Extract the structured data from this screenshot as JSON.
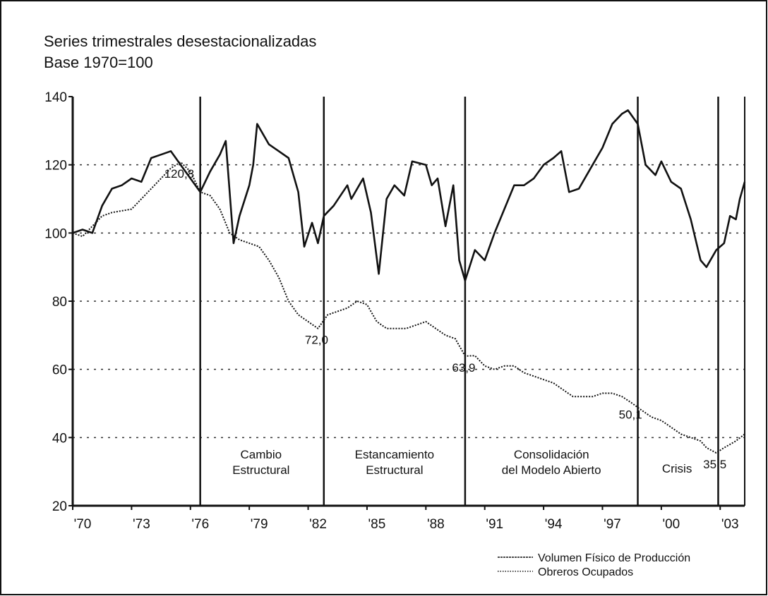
{
  "chart_data": {
    "type": "line",
    "title": "Series trimestrales desestacionalizadas",
    "subtitle": "Base 1970=100",
    "xlim": [
      1970,
      2004.25
    ],
    "ylim": [
      20,
      140
    ],
    "yticks": [
      20,
      40,
      60,
      80,
      100,
      120,
      140
    ],
    "xticks": [
      {
        "value": 1970,
        "label": "'70"
      },
      {
        "value": 1973,
        "label": "'73"
      },
      {
        "value": 1976,
        "label": "'76"
      },
      {
        "value": 1979,
        "label": "'79"
      },
      {
        "value": 1982,
        "label": "'82"
      },
      {
        "value": 1985,
        "label": "'85"
      },
      {
        "value": 1988,
        "label": "'88"
      },
      {
        "value": 1991,
        "label": "'91"
      },
      {
        "value": 1994,
        "label": "'94"
      },
      {
        "value": 1997,
        "label": "'97"
      },
      {
        "value": 2000,
        "label": "'00"
      },
      {
        "value": 2003,
        "label": "'03"
      }
    ],
    "grid": true,
    "legend": "bottom-right",
    "dividers": [
      1976.5,
      1982.8,
      1990.0,
      1998.8,
      2002.9
    ],
    "periods": [
      {
        "x": 1979.6,
        "lines": [
          "Cambio",
          "Estructural"
        ]
      },
      {
        "x": 1986.4,
        "lines": [
          "Estancamiento",
          "Estructural"
        ]
      },
      {
        "x": 1994.4,
        "lines": [
          "Consolidación",
          "del Modelo Abierto"
        ]
      },
      {
        "x": 2000.8,
        "lines": [
          "Crisis"
        ]
      }
    ],
    "series": [
      {
        "name": "Volumen Físico de Producción",
        "color": "#111111",
        "style": "solid",
        "x": [
          1970,
          1970.5,
          1971,
          1971.5,
          1972,
          1972.5,
          1973,
          1973.5,
          1974,
          1974.5,
          1975,
          1975.5,
          1976,
          1976.5,
          1977,
          1977.5,
          1977.8,
          1978.2,
          1978.5,
          1979,
          1979.2,
          1979.4,
          1980,
          1980.5,
          1981,
          1981.5,
          1981.8,
          1982.2,
          1982.5,
          1982.8,
          1983.3,
          1984,
          1984.2,
          1984.8,
          1985.2,
          1985.6,
          1986,
          1986.4,
          1986.9,
          1987.3,
          1988,
          1988.3,
          1988.6,
          1989.0,
          1989.4,
          1989.7,
          1990,
          1990.5,
          1991,
          1991.5,
          1992,
          1992.5,
          1993,
          1993.5,
          1994,
          1994.5,
          1994.9,
          1995.3,
          1995.8,
          1996.3,
          1997,
          1997.5,
          1998,
          1998.3,
          1998.8,
          1999.2,
          1999.7,
          2000,
          2000.5,
          2001,
          2001.5,
          2002,
          2002.3,
          2002.8,
          2003.2,
          2003.5,
          2003.8,
          2004,
          2004.25
        ],
        "values": [
          100,
          101,
          100,
          108,
          113,
          114,
          116,
          115,
          122,
          123,
          124,
          120,
          116,
          112,
          118,
          123,
          127,
          97,
          105,
          114,
          120,
          132,
          126,
          124,
          122,
          112,
          96,
          103,
          97,
          105,
          108,
          114,
          110,
          116,
          106,
          88,
          110,
          114,
          111,
          121,
          120,
          114,
          116,
          102,
          114,
          92,
          86,
          95,
          92,
          100,
          107,
          114,
          114,
          116,
          120,
          122,
          124,
          112,
          113,
          118,
          125,
          132,
          135,
          136,
          132,
          120,
          117,
          121,
          115,
          113,
          104,
          92,
          90,
          95,
          97,
          105,
          104,
          110,
          115
        ]
      },
      {
        "name": "Obreros Ocupados",
        "color": "#111111",
        "style": "dotted",
        "x": [
          1970,
          1970.5,
          1971,
          1971.5,
          1972,
          1973,
          1973.5,
          1974,
          1974.5,
          1975,
          1975.5,
          1976,
          1976.5,
          1977,
          1977.5,
          1978,
          1978.5,
          1979,
          1979.5,
          1980,
          1980.5,
          1981,
          1981.5,
          1982,
          1982.5,
          1983,
          1983.5,
          1984,
          1984.5,
          1985,
          1985.5,
          1986,
          1987,
          1988,
          1988.5,
          1989,
          1989.5,
          1990,
          1990.5,
          1991,
          1991.5,
          1992,
          1992.5,
          1993,
          1993.5,
          1994,
          1994.5,
          1995,
          1995.5,
          1996,
          1996.5,
          1997,
          1997.5,
          1998,
          1998.5,
          1999,
          1999.5,
          2000,
          2000.5,
          2001,
          2001.5,
          2002,
          2002.3,
          2002.8,
          2003.2,
          2003.8,
          2004.25
        ],
        "values": [
          100,
          99,
          102,
          105,
          106,
          107,
          110,
          113,
          116,
          119,
          120.8,
          118,
          112,
          111,
          107,
          100,
          98,
          97,
          96,
          92,
          87,
          80,
          76,
          74,
          72,
          76,
          77,
          78,
          80,
          79,
          74,
          72,
          72,
          74,
          72,
          70,
          69,
          63.9,
          64,
          61,
          60,
          61,
          61,
          59,
          58,
          57,
          56,
          54,
          52,
          52,
          52,
          53,
          53,
          52,
          50.1,
          48,
          46,
          45,
          43,
          41,
          40,
          39,
          37,
          35.5,
          37,
          39,
          41
        ]
      }
    ],
    "annotations": [
      {
        "text": "120,8",
        "x": 1975.5,
        "y": 120.8
      },
      {
        "text": "72,0",
        "x": 1982.5,
        "y": 72
      },
      {
        "text": "63,9",
        "x": 1990,
        "y": 63.9
      },
      {
        "text": "50,1",
        "x": 1998.5,
        "y": 50.1
      },
      {
        "text": "35,5",
        "x": 2002.8,
        "y": 35.5
      }
    ]
  }
}
